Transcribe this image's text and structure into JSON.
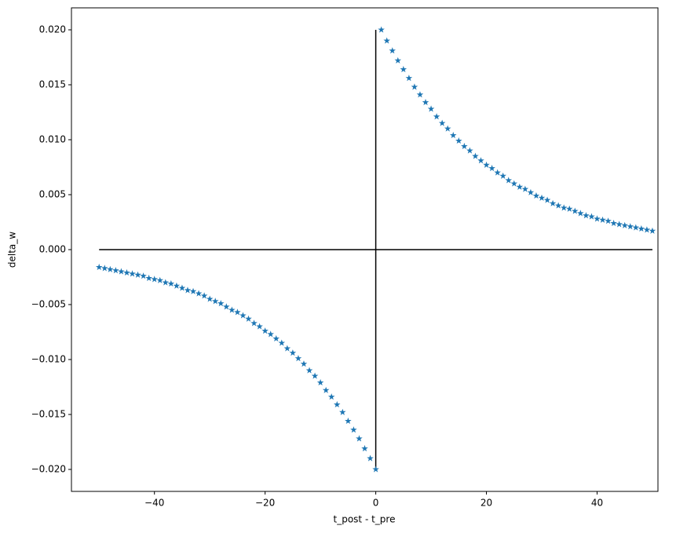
{
  "chart_data": {
    "type": "scatter",
    "x_label": "t_post - t_pre",
    "y_label": "delta_w",
    "xlim": [
      -55,
      51
    ],
    "ylim": [
      -0.022,
      0.022
    ],
    "xticks": [
      {
        "value": -40,
        "label": "−40"
      },
      {
        "value": -20,
        "label": "−20"
      },
      0,
      20,
      40
    ],
    "yticks": [
      {
        "value": -0.02,
        "label": "−0.020"
      },
      {
        "value": -0.015,
        "label": "−0.015"
      },
      {
        "value": -0.01,
        "label": "−0.010"
      },
      {
        "value": -0.005,
        "label": "−0.005"
      },
      {
        "value": 0,
        "label": "0.000"
      },
      {
        "value": 0.005,
        "label": "0.005"
      },
      {
        "value": 0.01,
        "label": "0.010"
      },
      {
        "value": 0.015,
        "label": "0.015"
      },
      {
        "value": 0.02,
        "label": "0.020"
      }
    ],
    "marker": "star",
    "series": [
      {
        "color": "#1f77b4",
        "x": [
          -50,
          -49,
          -48,
          -47,
          -46,
          -45,
          -44,
          -43,
          -42,
          -41,
          -40,
          -39,
          -38,
          -37,
          -36,
          -35,
          -34,
          -33,
          -32,
          -31,
          -30,
          -29,
          -28,
          -27,
          -26,
          -25,
          -24,
          -23,
          -22,
          -21,
          -20,
          -19,
          -18,
          -17,
          -16,
          -15,
          -14,
          -13,
          -12,
          -11,
          -10,
          -9,
          -8,
          -7,
          -6,
          -5,
          -4,
          -3,
          -2,
          -1,
          0,
          1,
          2,
          3,
          4,
          5,
          6,
          7,
          8,
          9,
          10,
          11,
          12,
          13,
          14,
          15,
          16,
          17,
          18,
          19,
          20,
          21,
          22,
          23,
          24,
          25,
          26,
          27,
          28,
          29,
          30,
          31,
          32,
          33,
          34,
          35,
          36,
          37,
          38,
          39,
          40,
          41,
          42,
          43,
          44,
          45,
          46,
          47,
          48,
          49,
          50
        ],
        "values": [
          -0.0016,
          -0.0017,
          -0.0018,
          -0.0019,
          -0.002,
          -0.0021,
          -0.0022,
          -0.0023,
          -0.0024,
          -0.0026,
          -0.0027,
          -0.0028,
          -0.003,
          -0.0031,
          -0.0033,
          -0.0035,
          -0.0037,
          -0.0038,
          -0.004,
          -0.0042,
          -0.0045,
          -0.0047,
          -0.0049,
          -0.0052,
          -0.0055,
          -0.0057,
          -0.006,
          -0.0063,
          -0.0067,
          -0.007,
          -0.0074,
          -0.0077,
          -0.0081,
          -0.0085,
          -0.009,
          -0.0094,
          -0.0099,
          -0.0104,
          -0.011,
          -0.0115,
          -0.0121,
          -0.0128,
          -0.0134,
          -0.0141,
          -0.0148,
          -0.0156,
          -0.0164,
          -0.0172,
          -0.0181,
          -0.019,
          -0.02,
          0.02,
          0.019,
          0.0181,
          0.0172,
          0.0164,
          0.0156,
          0.0148,
          0.0141,
          0.0134,
          0.0128,
          0.0121,
          0.0115,
          0.011,
          0.0104,
          0.0099,
          0.0094,
          0.009,
          0.0085,
          0.0081,
          0.0077,
          0.0074,
          0.007,
          0.0067,
          0.0063,
          0.006,
          0.0057,
          0.0055,
          0.0052,
          0.0049,
          0.0047,
          0.0045,
          0.0042,
          0.004,
          0.0038,
          0.0037,
          0.0035,
          0.0033,
          0.0031,
          0.003,
          0.0028,
          0.0027,
          0.0026,
          0.0024,
          0.0023,
          0.0022,
          0.0021,
          0.002,
          0.0019,
          0.0018,
          0.0017
        ]
      }
    ],
    "lines": [
      {
        "color": "#000000",
        "x": [
          -50,
          50
        ],
        "values": [
          0,
          0
        ]
      },
      {
        "color": "#000000",
        "x": [
          0,
          0
        ],
        "values": [
          -0.02,
          0.02
        ]
      }
    ]
  }
}
